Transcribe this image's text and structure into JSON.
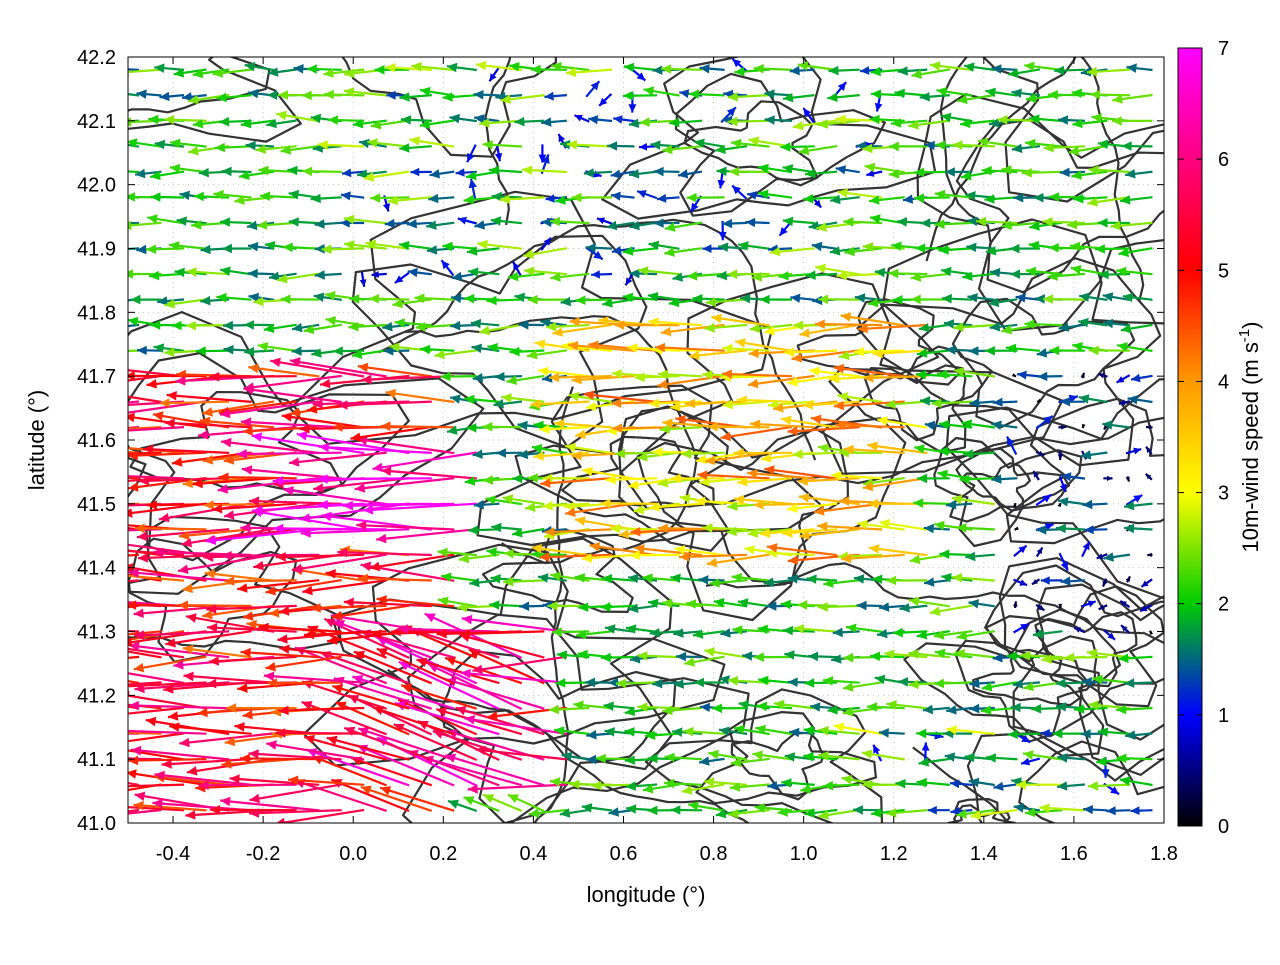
{
  "chart_data": {
    "type": "vector-field",
    "xlabel": "longitude (°)",
    "ylabel": "latitude (°)",
    "xlim": [
      -0.5,
      1.8
    ],
    "ylim": [
      41.0,
      42.2
    ],
    "xticks": [
      "-0.4",
      "-0.2",
      "0.0",
      "0.2",
      "0.4",
      "0.6",
      "0.8",
      "1.0",
      "1.2",
      "1.4",
      "1.6",
      "1.8"
    ],
    "yticks": [
      "41.0",
      "41.1",
      "41.2",
      "41.3",
      "41.4",
      "41.5",
      "41.6",
      "41.7",
      "41.8",
      "41.9",
      "42.0",
      "42.1",
      "42.2"
    ],
    "grid": true,
    "colorbar": {
      "label": "10m-wind speed (m s",
      "label_sup": "-1",
      "label_end": ")",
      "range": [
        0,
        7
      ],
      "ticks": [
        "0",
        "1",
        "2",
        "3",
        "4",
        "5",
        "6",
        "7"
      ],
      "stops": [
        "#000000",
        "#0000ff",
        "#00cc00",
        "#ffff00",
        "#ff9900",
        "#ff0000",
        "#ff00ff"
      ]
    },
    "wind_field": {
      "grid_spacing_deg": [
        0.05,
        0.04
      ],
      "prevailing_direction": "westward",
      "max_speed": 7.0,
      "regions": [
        {
          "lon": [
            -0.5,
            0.25
          ],
          "lat": [
            41.0,
            41.7
          ],
          "speed": 5.2
        },
        {
          "lon": [
            0.1,
            0.5
          ],
          "lat": [
            41.05,
            41.3
          ],
          "speed": 5.8
        },
        {
          "lon": [
            -0.1,
            0.3
          ],
          "lat": [
            41.45,
            41.6
          ],
          "speed": 6.5
        },
        {
          "lon": [
            0.5,
            1.3
          ],
          "lat": [
            41.4,
            41.8
          ],
          "speed": 3.5
        },
        {
          "lon": [
            1.45,
            1.8
          ],
          "lat": [
            41.3,
            41.7
          ],
          "speed": 0.8
        },
        {
          "lon": [
            0.0,
            1.2
          ],
          "lat": [
            41.85,
            42.2
          ],
          "speed": 1.8
        },
        {
          "lon": [
            1.1,
            1.8
          ],
          "lat": [
            41.0,
            41.15
          ],
          "speed": 2.0
        }
      ]
    },
    "contours": {
      "color": "#333333",
      "description": "terrain elevation isolines"
    }
  }
}
